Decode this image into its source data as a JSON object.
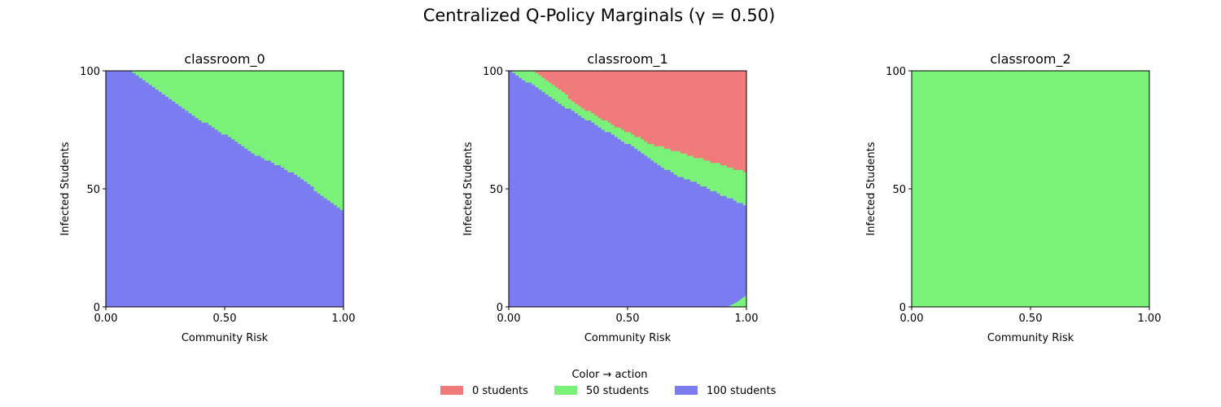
{
  "figure": {
    "title": "Centralized Q-Policy Marginals (γ = 0.50)"
  },
  "legend": {
    "title": "Color → action",
    "placement": "bottom-center",
    "items": [
      {
        "label": "0 students",
        "color": "#f17a7a"
      },
      {
        "label": "50 students",
        "color": "#7af27a"
      },
      {
        "label": "100 students",
        "color": "#7b7bf2"
      }
    ]
  },
  "chart_data": [
    {
      "type": "heatmap",
      "title": "classroom_0",
      "xlabel": "Community Risk",
      "ylabel": "Infected Students",
      "xlim": [
        0,
        1
      ],
      "ylim": [
        0,
        100
      ],
      "xticks": [
        "0.00",
        "0.50",
        "1.00"
      ],
      "yticks": [
        "0",
        "50",
        "100"
      ],
      "x": [
        0.0,
        0.1,
        0.2,
        0.3,
        0.4,
        0.5,
        0.6,
        0.7,
        0.8,
        0.9,
        1.0
      ],
      "regions": [
        {
          "action": "50 students",
          "lower_boundary": [
            100,
            100,
            93,
            86,
            79,
            73,
            66,
            61,
            56,
            48,
            41
          ]
        },
        {
          "action": "0 students",
          "lower_boundary": [
            100,
            100,
            100,
            100,
            100,
            100,
            100,
            100,
            100,
            100,
            100
          ]
        }
      ]
    },
    {
      "type": "heatmap",
      "title": "classroom_1",
      "xlabel": "Community Risk",
      "ylabel": "Infected Students",
      "xlim": [
        0,
        1
      ],
      "ylim": [
        0,
        100
      ],
      "xticks": [
        "0.00",
        "0.50",
        "1.00"
      ],
      "yticks": [
        "0",
        "50",
        "100"
      ],
      "x": [
        0.0,
        0.1,
        0.2,
        0.3,
        0.4,
        0.5,
        0.6,
        0.7,
        0.8,
        0.9,
        1.0
      ],
      "regions": [
        {
          "action": "50 students",
          "lower_boundary": [
            100,
            94,
            87,
            81,
            75,
            69,
            62,
            56,
            52,
            47,
            43
          ],
          "lower_boundary_override": {
            "x": [
              0.92,
              0.96,
              1.0
            ],
            "y": [
              0,
              2,
              5
            ]
          }
        },
        {
          "action": "0 students",
          "lower_boundary": [
            100,
            100,
            93,
            85,
            79,
            74,
            69,
            66,
            63,
            60,
            57
          ]
        }
      ]
    },
    {
      "type": "heatmap",
      "title": "classroom_2",
      "xlabel": "Community Risk",
      "ylabel": "Infected Students",
      "xlim": [
        0,
        1
      ],
      "ylim": [
        0,
        100
      ],
      "xticks": [
        "0.00",
        "0.50",
        "1.00"
      ],
      "yticks": [
        "0",
        "50",
        "100"
      ],
      "x": [
        0.0,
        0.5,
        1.0
      ],
      "regions": [
        {
          "action": "50 students",
          "lower_boundary": [
            0,
            0,
            0
          ]
        },
        {
          "action": "0 students",
          "lower_boundary": [
            100,
            100,
            100
          ]
        }
      ]
    }
  ]
}
